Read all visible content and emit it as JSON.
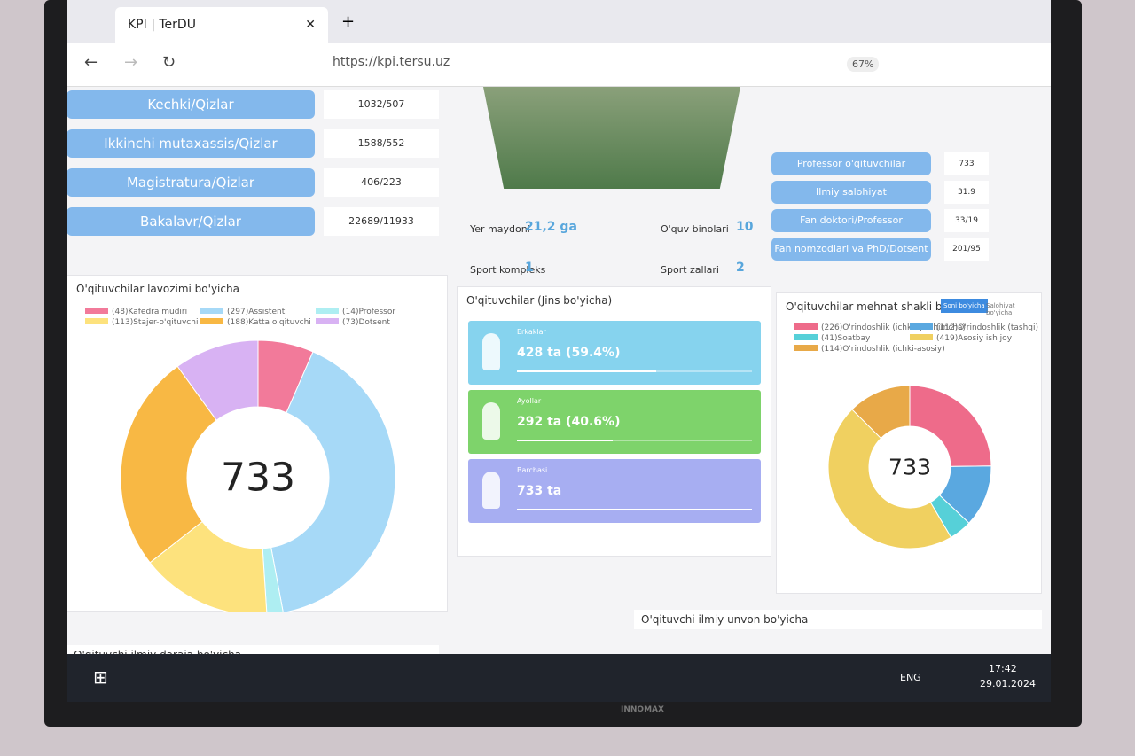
{
  "browser": {
    "tab_title": "KPI | TerDU",
    "url": "https://kpi.tersu.uz",
    "zoom": "67%"
  },
  "left_rows": [
    {
      "label": "Kechki/Qizlar",
      "value": "1032/507"
    },
    {
      "label": "Ikkinchi mutaxassis/Qizlar",
      "value": "1588/552"
    },
    {
      "label": "Magistratura/Qizlar",
      "value": "406/223"
    },
    {
      "label": "Bakalavr/Qizlar",
      "value": "22689/11933"
    }
  ],
  "campus": [
    {
      "label": "Yer maydoni",
      "value": "21,2 ga"
    },
    {
      "label": "O'quv binolari",
      "value": "10"
    },
    {
      "label": "Sport kompleks",
      "value": "1"
    },
    {
      "label": "Sport zallari",
      "value": "2"
    }
  ],
  "right_rows": [
    {
      "label": "Professor o'qituvchilar",
      "value": "733"
    },
    {
      "label": "Ilmiy salohiyat",
      "value": "31.9"
    },
    {
      "label": "Fan doktori/Professor",
      "value": "33/19"
    },
    {
      "label": "Fan nomzodlari va PhD/Dotsent",
      "value": "201/95"
    }
  ],
  "chart_data": [
    {
      "type": "donut",
      "title": "O'qituvchilar lavozimi bo'yicha",
      "total": 733,
      "items": [
        {
          "label": "(48)Kafedra mudiri",
          "value": 48,
          "color": "#f27a9a"
        },
        {
          "label": "(297)Assistent",
          "value": 297,
          "color": "#a6d9f7"
        },
        {
          "label": "(14)Professor",
          "value": 14,
          "color": "#aeeef2"
        },
        {
          "label": "(113)Stajer-o'qituvchi",
          "value": 113,
          "color": "#fde27d"
        },
        {
          "label": "(188)Katta o'qituvchi",
          "value": 188,
          "color": "#f8b844"
        },
        {
          "label": "(73)Dotsent",
          "value": 73,
          "color": "#d8b2f3"
        }
      ]
    },
    {
      "type": "donut",
      "title": "O'qituvchilar mehnat shakli bo'yicha",
      "total": 733,
      "tabs": [
        "Soni bo'yicha",
        "Salohiyat bo'yicha"
      ],
      "items": [
        {
          "label": "(226)O'rindoshlik (ichki-qo'shimcha)",
          "value": 226,
          "color": "#ee6b8a"
        },
        {
          "label": "(112)O'rindoshlik (tashqi)",
          "value": 112,
          "color": "#5aa8e0"
        },
        {
          "label": "(41)Soatbay",
          "value": 41,
          "color": "#56d0d8"
        },
        {
          "label": "(419)Asosiy ish joy",
          "value": 419,
          "color": "#f0d060"
        },
        {
          "label": "(114)O'rindoshlik (ichki-asosiy)",
          "value": 114,
          "color": "#e8a948"
        }
      ]
    }
  ],
  "gender": {
    "title": "O'qituvchilar (Jins bo'yicha)",
    "cards": [
      {
        "title": "Erkaklar",
        "text": "428 ta (59.4%)",
        "percent": 59.4,
        "color": "#86d3ee"
      },
      {
        "title": "Ayollar",
        "text": "292 ta (40.6%)",
        "percent": 40.6,
        "color": "#7ed36b"
      },
      {
        "title": "Barchasi",
        "text": "733 ta",
        "percent": 100,
        "color": "#a7aef2"
      }
    ]
  },
  "sections": [
    "O'qituvchi ilmiy unvon bo'yicha",
    "O'qituvchi ilmiy daraja bo'yicha"
  ],
  "taskbar": {
    "lang": "ENG",
    "time": "17:42",
    "date": "29.01.2024"
  },
  "brand": "INNOMAX"
}
